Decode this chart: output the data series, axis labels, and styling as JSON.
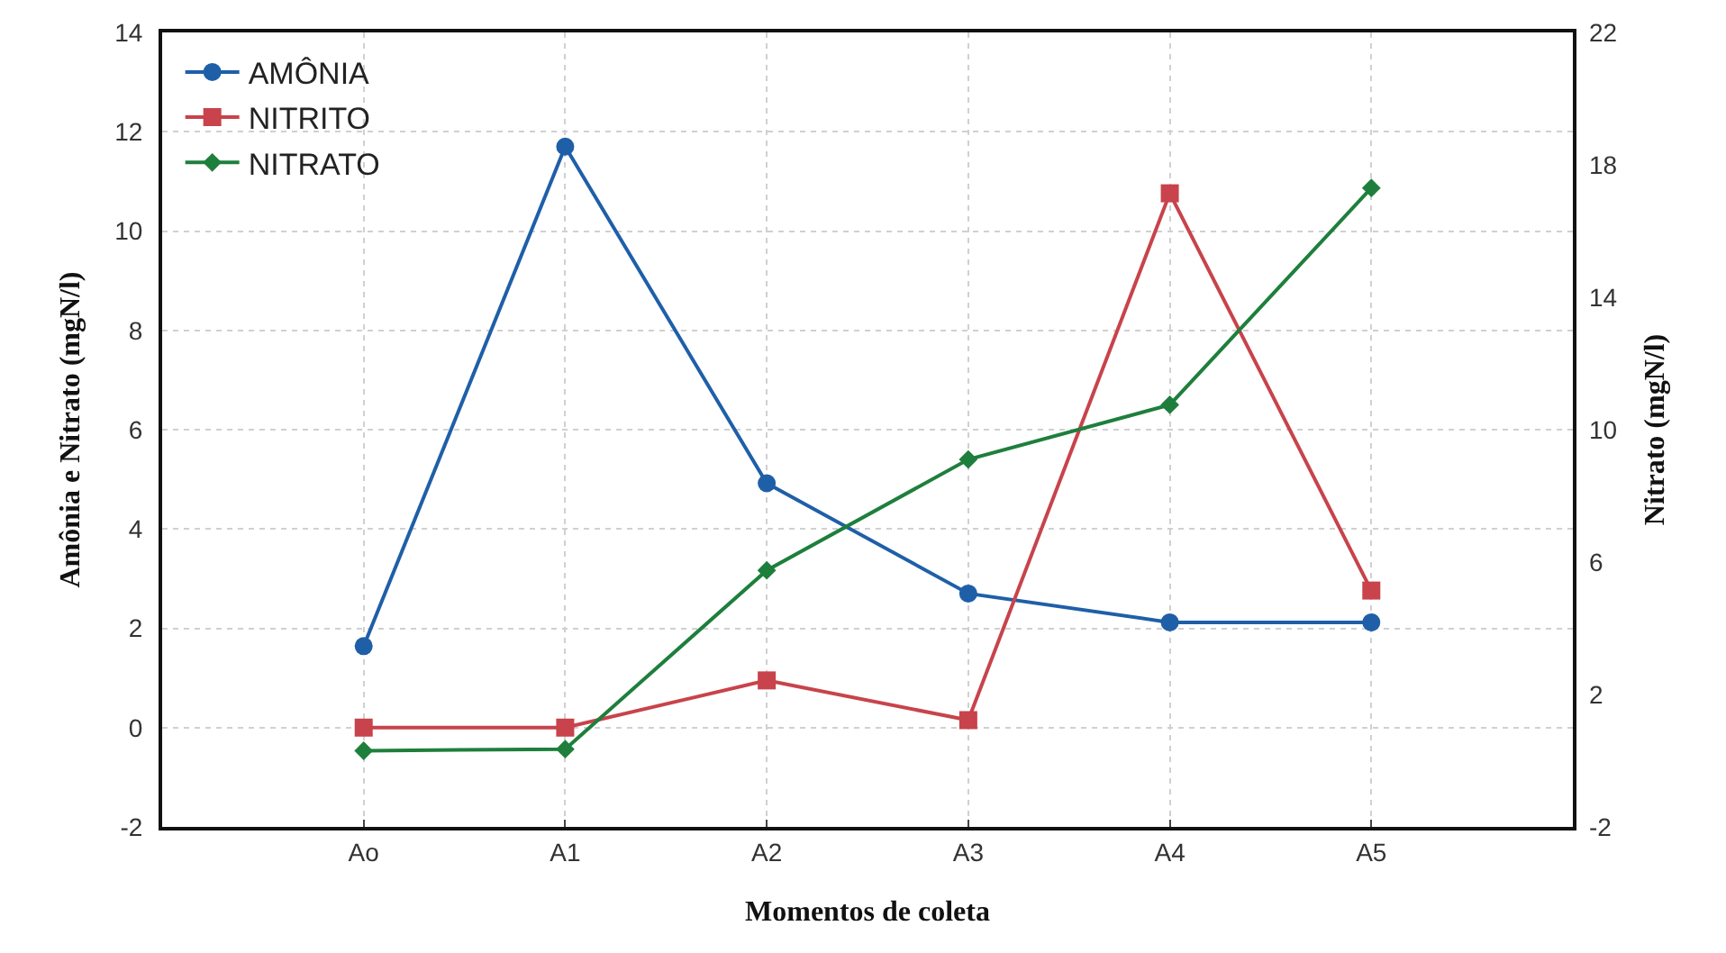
{
  "chart_data": {
    "type": "line",
    "xlabel": "Momentos de coleta",
    "ylabel": "Amônia e Nitrato (mgN/l)",
    "y2label": "Nitrato (mgN/l)",
    "categories": [
      "Ao",
      "A1",
      "A2",
      "A3",
      "A4",
      "A5"
    ],
    "series": [
      {
        "name": "AMÔNIA",
        "color": "#1f5fa8",
        "marker": "circle",
        "values": [
          1.64,
          11.7,
          4.92,
          2.7,
          2.12,
          2.12
        ]
      },
      {
        "name": "NITRITO",
        "color": "#c8434b",
        "marker": "square",
        "values": [
          0,
          0,
          0.95,
          0.15,
          10.76,
          2.76
        ]
      },
      {
        "name": "NITRATO",
        "color": "#1e7f3c",
        "marker": "diamond",
        "axis": "y2",
        "values": [
          0.3,
          0.35,
          5.75,
          9.1,
          10.75,
          17.3
        ]
      }
    ],
    "ylim": [
      -2,
      14
    ],
    "yticks": [
      -2,
      0,
      2,
      4,
      6,
      8,
      10,
      12,
      14
    ],
    "y2lim": [
      -2,
      22
    ],
    "y2ticks": [
      -2,
      2,
      6,
      10,
      14,
      18,
      22
    ],
    "grid": true,
    "legend": "top left",
    "line_style": "solid"
  }
}
